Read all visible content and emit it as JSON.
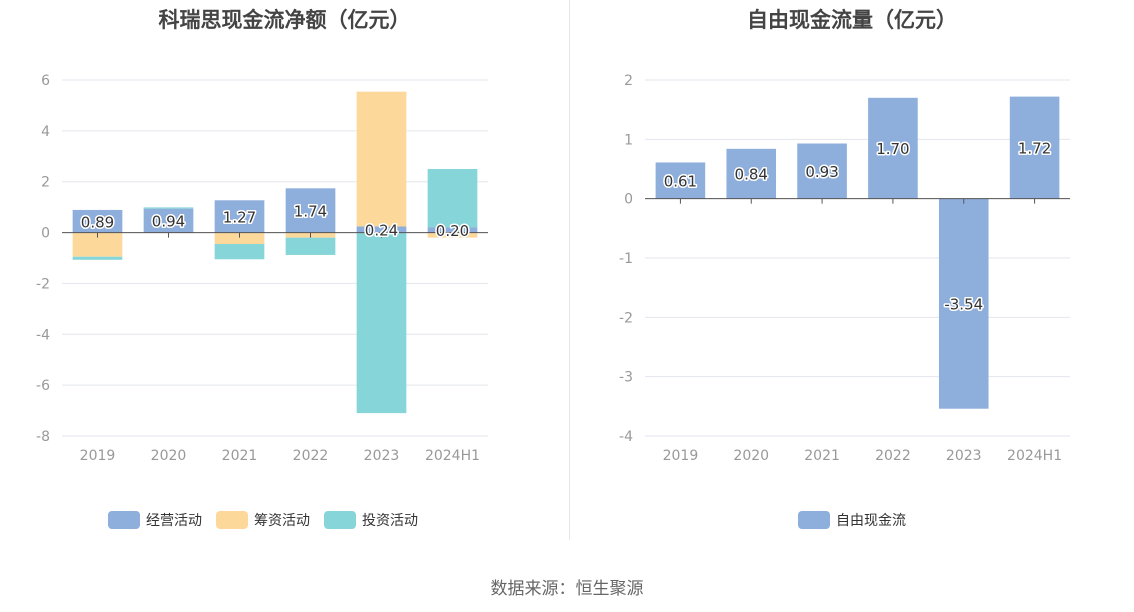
{
  "source": "数据来源：恒生聚源",
  "chart_data": [
    {
      "type": "bar",
      "stacked": true,
      "title": "科瑞思现金流净额（亿元）",
      "categories": [
        "2019",
        "2020",
        "2021",
        "2022",
        "2023",
        "2024H1"
      ],
      "ylim": [
        -8,
        6
      ],
      "yticks": [
        6,
        4,
        2,
        0,
        -2,
        -4,
        -6,
        -8
      ],
      "grid": true,
      "legend_position": "bottom",
      "series": [
        {
          "name": "经营活动",
          "color": "#8eaedc",
          "values": [
            0.89,
            0.94,
            1.27,
            1.74,
            0.24,
            0.2
          ],
          "labels": [
            "0.89",
            "0.94",
            "1.27",
            "1.74",
            "0.24",
            "0.20"
          ]
        },
        {
          "name": "筹资活动",
          "color": "#fdd89b",
          "values": [
            -0.95,
            -0.02,
            -0.45,
            -0.2,
            5.3,
            -0.2
          ]
        },
        {
          "name": "投资活动",
          "color": "#86d5d8",
          "values": [
            -0.12,
            0.05,
            -0.6,
            -0.68,
            -7.1,
            2.3
          ]
        }
      ]
    },
    {
      "type": "bar",
      "title": "自由现金流量（亿元）",
      "categories": [
        "2019",
        "2020",
        "2021",
        "2022",
        "2023",
        "2024H1"
      ],
      "ylim": [
        -4,
        2
      ],
      "yticks": [
        2,
        1,
        0,
        -1,
        -2,
        -3,
        -4
      ],
      "grid": true,
      "legend_position": "bottom",
      "series": [
        {
          "name": "自由现金流",
          "color": "#8eaedc",
          "values": [
            0.61,
            0.84,
            0.93,
            1.7,
            -3.54,
            1.72
          ],
          "labels": [
            "0.61",
            "0.84",
            "0.93",
            "1.70",
            "-3.54",
            "1.72"
          ]
        }
      ]
    }
  ]
}
